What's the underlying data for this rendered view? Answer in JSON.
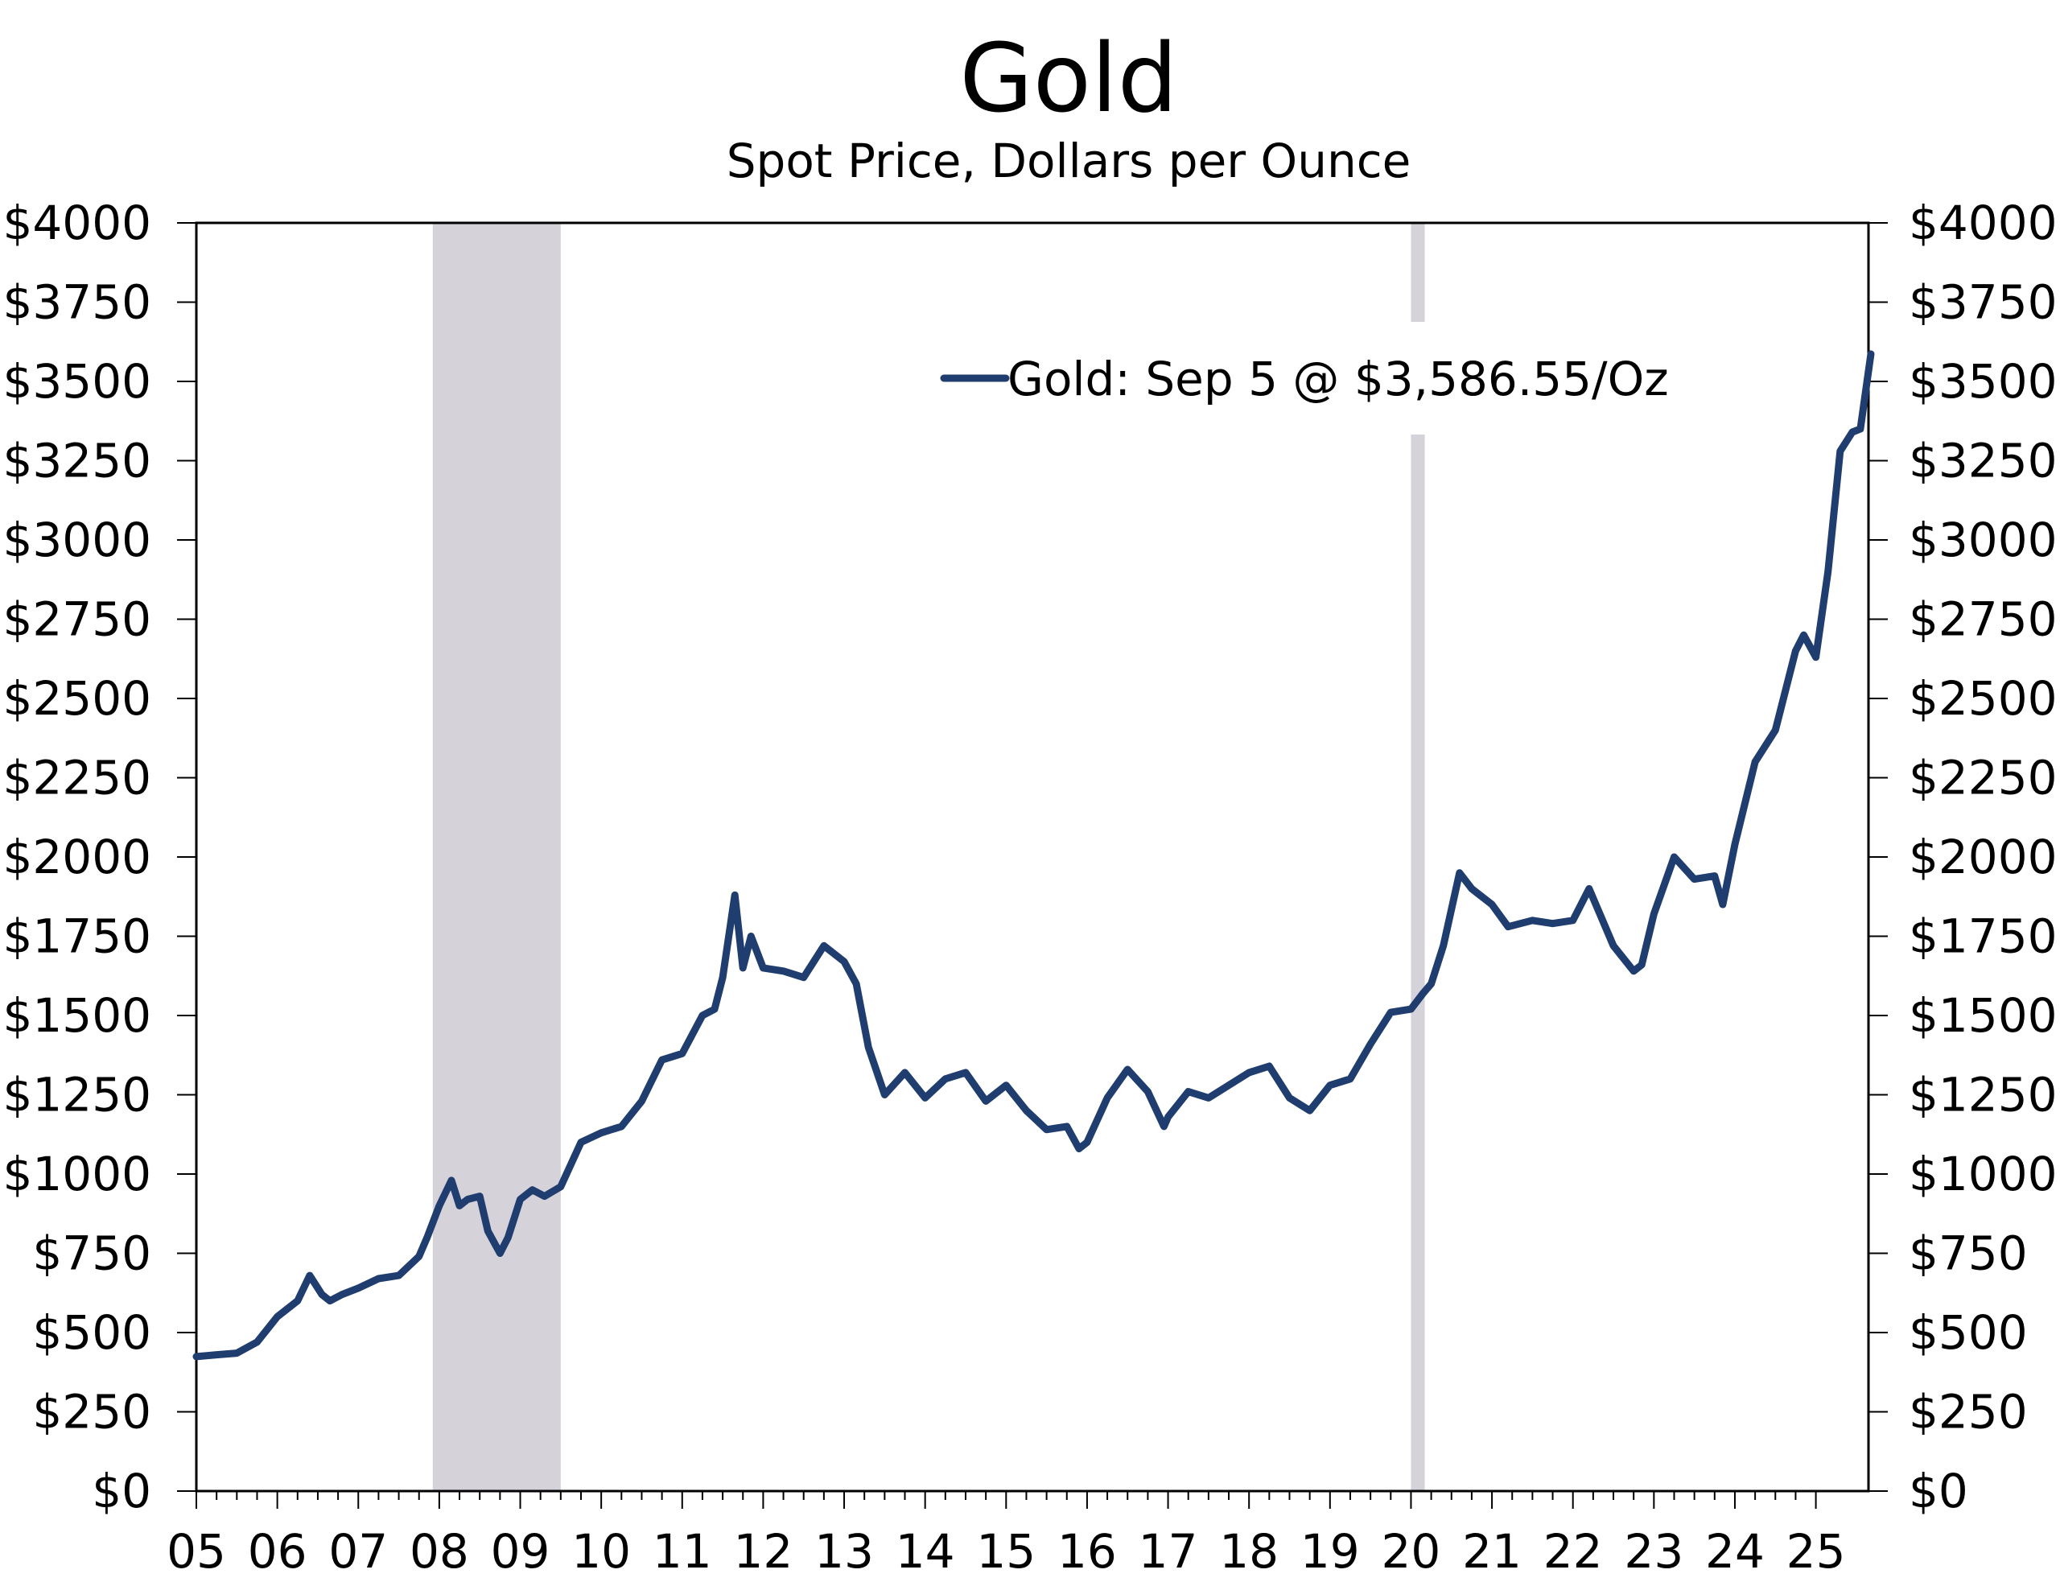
{
  "chart_data": {
    "type": "line",
    "title": "Gold",
    "subtitle": "Spot Price, Dollars per Ounce",
    "xlabel": "",
    "ylabel": "",
    "xlim": [
      2005.0,
      2025.65
    ],
    "ylim": [
      0,
      4000
    ],
    "y_ticks": [
      0,
      250,
      500,
      750,
      1000,
      1250,
      1500,
      1750,
      2000,
      2250,
      2500,
      2750,
      3000,
      3250,
      3500,
      3750,
      4000
    ],
    "y_tick_labels": [
      "$0",
      "$250",
      "$500",
      "$750",
      "$1000",
      "$1250",
      "$1500",
      "$1750",
      "$2000",
      "$2250",
      "$2500",
      "$2750",
      "$3000",
      "$3250",
      "$3500",
      "$3750",
      "$4000"
    ],
    "x_ticks": [
      2005,
      2006,
      2007,
      2008,
      2009,
      2010,
      2011,
      2012,
      2013,
      2014,
      2015,
      2016,
      2017,
      2018,
      2019,
      2020,
      2021,
      2022,
      2023,
      2024,
      2025
    ],
    "x_tick_labels": [
      "05",
      "06",
      "07",
      "08",
      "09",
      "10",
      "11",
      "12",
      "13",
      "14",
      "15",
      "16",
      "17",
      "18",
      "19",
      "20",
      "21",
      "22",
      "23",
      "24",
      "25"
    ],
    "dual_y_axis": true,
    "grid": false,
    "legend": {
      "placement": "top-right",
      "entries": [
        "Gold: Sep 5 @ $3,586.55/Oz"
      ]
    },
    "colors": {
      "series": "#1f3d6e",
      "recession": "#d6d2da",
      "axis": "#000000"
    },
    "recessions": [
      {
        "start": 2007.92,
        "end": 2009.5
      },
      {
        "start": 2020.0,
        "end": 2020.17
      }
    ],
    "series": [
      {
        "name": "Gold: Sep 5 @ $3,586.55/Oz",
        "x": [
          2005.0,
          2005.25,
          2005.5,
          2005.75,
          2006.0,
          2006.25,
          2006.4,
          2006.55,
          2006.65,
          2006.8,
          2007.0,
          2007.25,
          2007.5,
          2007.75,
          2007.85,
          2008.0,
          2008.15,
          2008.25,
          2008.35,
          2008.5,
          2008.6,
          2008.75,
          2008.85,
          2009.0,
          2009.15,
          2009.3,
          2009.5,
          2009.75,
          2010.0,
          2010.25,
          2010.5,
          2010.75,
          2011.0,
          2011.25,
          2011.4,
          2011.5,
          2011.65,
          2011.75,
          2011.85,
          2012.0,
          2012.25,
          2012.5,
          2012.75,
          2013.0,
          2013.15,
          2013.3,
          2013.5,
          2013.75,
          2014.0,
          2014.25,
          2014.5,
          2014.75,
          2015.0,
          2015.25,
          2015.5,
          2015.75,
          2015.9,
          2016.0,
          2016.25,
          2016.5,
          2016.75,
          2016.95,
          2017.0,
          2017.25,
          2017.5,
          2017.75,
          2018.0,
          2018.25,
          2018.5,
          2018.75,
          2019.0,
          2019.25,
          2019.5,
          2019.75,
          2020.0,
          2020.15,
          2020.25,
          2020.4,
          2020.6,
          2020.75,
          2021.0,
          2021.2,
          2021.5,
          2021.75,
          2022.0,
          2022.2,
          2022.5,
          2022.75,
          2022.85,
          2023.0,
          2023.25,
          2023.5,
          2023.75,
          2023.85,
          2024.0,
          2024.25,
          2024.5,
          2024.75,
          2024.85,
          2025.0,
          2025.15,
          2025.3,
          2025.45,
          2025.55,
          2025.68
        ],
        "values": [
          424,
          430,
          435,
          470,
          550,
          600,
          680,
          620,
          600,
          620,
          640,
          670,
          680,
          740,
          800,
          900,
          980,
          900,
          920,
          930,
          820,
          750,
          800,
          920,
          950,
          930,
          960,
          1100,
          1130,
          1150,
          1230,
          1360,
          1380,
          1500,
          1520,
          1620,
          1880,
          1650,
          1750,
          1650,
          1640,
          1620,
          1720,
          1670,
          1600,
          1400,
          1250,
          1320,
          1240,
          1300,
          1320,
          1230,
          1280,
          1200,
          1140,
          1150,
          1080,
          1100,
          1240,
          1330,
          1260,
          1150,
          1180,
          1260,
          1240,
          1280,
          1320,
          1340,
          1240,
          1200,
          1280,
          1300,
          1410,
          1510,
          1520,
          1570,
          1600,
          1720,
          1950,
          1900,
          1850,
          1780,
          1800,
          1790,
          1800,
          1900,
          1720,
          1640,
          1660,
          1820,
          2000,
          1930,
          1940,
          1850,
          2040,
          2300,
          2400,
          2650,
          2700,
          2630,
          2900,
          3280,
          3340,
          3350,
          3586.55
        ]
      }
    ]
  }
}
